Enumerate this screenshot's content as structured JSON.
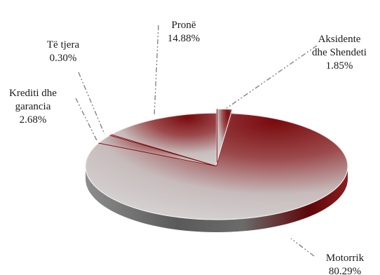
{
  "chart_data": {
    "type": "pie",
    "title": "",
    "three_d": true,
    "slices": [
      {
        "name": "Aksidente dhe Shendeti",
        "lines": [
          "Aksidente",
          "dhe Shendeti"
        ],
        "value": 1.85,
        "value_label": "1.85%",
        "exploded": true
      },
      {
        "name": "Motorrik",
        "lines": [
          "Motorrik"
        ],
        "value": 80.29,
        "value_label": "80.29%",
        "exploded": false
      },
      {
        "name": "Krediti dhe garancia",
        "lines": [
          "Krediti dhe",
          "garancia"
        ],
        "value": 2.68,
        "value_label": "2.68%",
        "exploded": false
      },
      {
        "name": "Të tjera",
        "lines": [
          "Të tjera"
        ],
        "value": 0.3,
        "value_label": "0.30%",
        "exploded": false
      },
      {
        "name": "Pronë",
        "lines": [
          "Pronë"
        ],
        "value": 14.88,
        "value_label": "14.88%",
        "exploded": false
      }
    ],
    "colors": {
      "dark_red": "#7a0a0e",
      "light_grey": "#d9d6d6",
      "side_dark": "#5a5a5a",
      "side_red": "#5e0608"
    }
  }
}
